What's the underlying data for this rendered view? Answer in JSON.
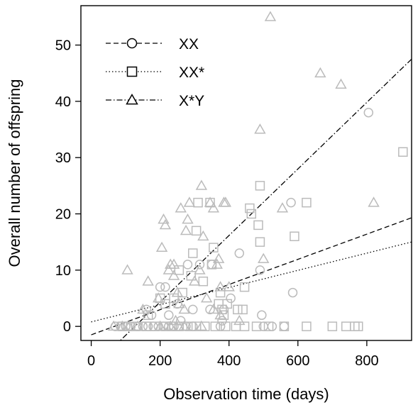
{
  "chart_data": {
    "type": "scatter",
    "xlabel": "Observation time (days)",
    "ylabel": "Overall number of offspring",
    "xlim": [
      -30,
      930
    ],
    "ylim": [
      -2.5,
      57
    ],
    "x_ticks": [
      0,
      200,
      400,
      600,
      800
    ],
    "y_ticks": [
      0,
      10,
      20,
      30,
      40,
      50
    ],
    "grid": false,
    "legend_position": "top-left",
    "point_color": "#bbbbbb",
    "line_color": "#000000",
    "series": [
      {
        "name": "XX",
        "marker": "circle",
        "line_style": "dashed",
        "fit_line": [
          [
            0,
            -1.5
          ],
          [
            930,
            19.3
          ]
        ],
        "points": [
          [
            70,
            0
          ],
          [
            85,
            0
          ],
          [
            100,
            0
          ],
          [
            115,
            0
          ],
          [
            135,
            0
          ],
          [
            150,
            0
          ],
          [
            165,
            0
          ],
          [
            180,
            0
          ],
          [
            195,
            0
          ],
          [
            210,
            0
          ],
          [
            225,
            0
          ],
          [
            240,
            0
          ],
          [
            255,
            0
          ],
          [
            275,
            0
          ],
          [
            295,
            0
          ],
          [
            375,
            0
          ],
          [
            500,
            0
          ],
          [
            525,
            0
          ],
          [
            160,
            3
          ],
          [
            175,
            2
          ],
          [
            200,
            7
          ],
          [
            215,
            7
          ],
          [
            225,
            2
          ],
          [
            250,
            4
          ],
          [
            260,
            1
          ],
          [
            280,
            11
          ],
          [
            295,
            3
          ],
          [
            315,
            11
          ],
          [
            345,
            3
          ],
          [
            350,
            11
          ],
          [
            380,
            1
          ],
          [
            385,
            3
          ],
          [
            405,
            5
          ],
          [
            430,
            13
          ],
          [
            490,
            10
          ],
          [
            495,
            2
          ],
          [
            560,
            0
          ],
          [
            580,
            22
          ],
          [
            585,
            6
          ],
          [
            805,
            38
          ]
        ]
      },
      {
        "name": "XX*",
        "marker": "square",
        "line_style": "dotted",
        "fit_line": [
          [
            0,
            0.8
          ],
          [
            930,
            15
          ]
        ],
        "points": [
          [
            90,
            0
          ],
          [
            105,
            0
          ],
          [
            130,
            0
          ],
          [
            160,
            0
          ],
          [
            185,
            0
          ],
          [
            215,
            0
          ],
          [
            235,
            0
          ],
          [
            255,
            0
          ],
          [
            290,
            0
          ],
          [
            305,
            0
          ],
          [
            330,
            0
          ],
          [
            360,
            0
          ],
          [
            390,
            0
          ],
          [
            420,
            0
          ],
          [
            445,
            0
          ],
          [
            480,
            0
          ],
          [
            515,
            0
          ],
          [
            560,
            0
          ],
          [
            625,
            0
          ],
          [
            700,
            0
          ],
          [
            740,
            0
          ],
          [
            765,
            0
          ],
          [
            775,
            0
          ],
          [
            165,
            2
          ],
          [
            200,
            5
          ],
          [
            215,
            4
          ],
          [
            240,
            5
          ],
          [
            255,
            10
          ],
          [
            265,
            6
          ],
          [
            290,
            9
          ],
          [
            295,
            13
          ],
          [
            305,
            17
          ],
          [
            310,
            22
          ],
          [
            325,
            8
          ],
          [
            345,
            22
          ],
          [
            350,
            11
          ],
          [
            355,
            14
          ],
          [
            370,
            4
          ],
          [
            375,
            6
          ],
          [
            380,
            3
          ],
          [
            385,
            2
          ],
          [
            395,
            4
          ],
          [
            425,
            3
          ],
          [
            440,
            3
          ],
          [
            445,
            7
          ],
          [
            460,
            21
          ],
          [
            465,
            20
          ],
          [
            485,
            18
          ],
          [
            490,
            15
          ],
          [
            490,
            25
          ],
          [
            590,
            16
          ],
          [
            625,
            22
          ],
          [
            905,
            31
          ]
        ]
      },
      {
        "name": "X*Y",
        "marker": "triangle",
        "line_style": "dashdot",
        "fit_line": [
          [
            0,
            -7.5
          ],
          [
            930,
            47.5
          ]
        ],
        "points": [
          [
            65,
            0
          ],
          [
            90,
            0
          ],
          [
            110,
            0
          ],
          [
            135,
            0
          ],
          [
            200,
            0
          ],
          [
            230,
            0
          ],
          [
            270,
            0
          ],
          [
            320,
            0
          ],
          [
            105,
            10
          ],
          [
            150,
            3
          ],
          [
            165,
            8
          ],
          [
            195,
            5
          ],
          [
            205,
            14
          ],
          [
            210,
            19
          ],
          [
            215,
            18
          ],
          [
            225,
            10
          ],
          [
            230,
            11
          ],
          [
            240,
            11
          ],
          [
            240,
            9
          ],
          [
            245,
            1
          ],
          [
            250,
            6
          ],
          [
            255,
            4
          ],
          [
            260,
            21
          ],
          [
            270,
            3
          ],
          [
            275,
            17
          ],
          [
            280,
            19
          ],
          [
            285,
            22
          ],
          [
            300,
            8
          ],
          [
            315,
            10
          ],
          [
            320,
            25
          ],
          [
            325,
            16
          ],
          [
            335,
            5
          ],
          [
            345,
            22
          ],
          [
            355,
            3
          ],
          [
            355,
            21
          ],
          [
            365,
            11
          ],
          [
            370,
            12
          ],
          [
            375,
            7
          ],
          [
            375,
            2
          ],
          [
            385,
            22
          ],
          [
            390,
            22
          ],
          [
            400,
            7
          ],
          [
            430,
            1
          ],
          [
            490,
            35
          ],
          [
            500,
            12
          ],
          [
            520,
            55
          ],
          [
            555,
            21
          ],
          [
            665,
            45
          ],
          [
            725,
            43
          ],
          [
            820,
            22
          ]
        ]
      }
    ]
  }
}
